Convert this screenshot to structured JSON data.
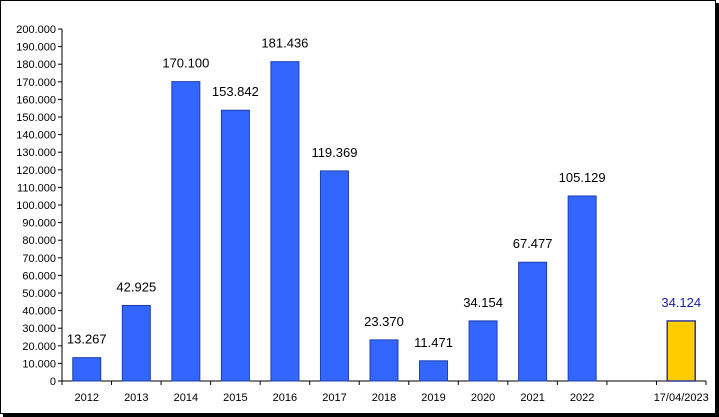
{
  "chart_data": {
    "type": "bar",
    "title": "",
    "xlabel": "",
    "ylabel": "",
    "ylim": [
      0,
      200000
    ],
    "ytick_step": 10000,
    "ytick_labels": [
      "0",
      "10.000",
      "20.000",
      "30.000",
      "40.000",
      "50.000",
      "60.000",
      "70.000",
      "80.000",
      "90.000",
      "100.000",
      "110.000",
      "120.000",
      "130.000",
      "140.000",
      "150.000",
      "160.000",
      "170.000",
      "180.000",
      "190.000",
      "200.000"
    ],
    "grid": false,
    "legend": "none",
    "categories": [
      "2012",
      "2013",
      "2014",
      "2015",
      "2016",
      "2017",
      "2018",
      "2019",
      "2020",
      "2021",
      "2022",
      "",
      "17/04/2023"
    ],
    "values": [
      13267,
      42925,
      170100,
      153842,
      181436,
      119369,
      23370,
      11471,
      34154,
      67477,
      105129,
      null,
      34124
    ],
    "data_labels": [
      "13.267",
      "42.925",
      "170.100",
      "153.842",
      "181.436",
      "119.369",
      "23.370",
      "11.471",
      "34.154",
      "67.477",
      "105.129",
      "",
      "34.124"
    ],
    "highlight_index": 12,
    "colors": {
      "bar": "#3366ff",
      "bar_border": "#1f3fae",
      "highlight_bar": "#ffcc00",
      "highlight_border": "#2a3a9a",
      "highlight_label": "#1a1aa8",
      "axis": "#000000"
    }
  }
}
